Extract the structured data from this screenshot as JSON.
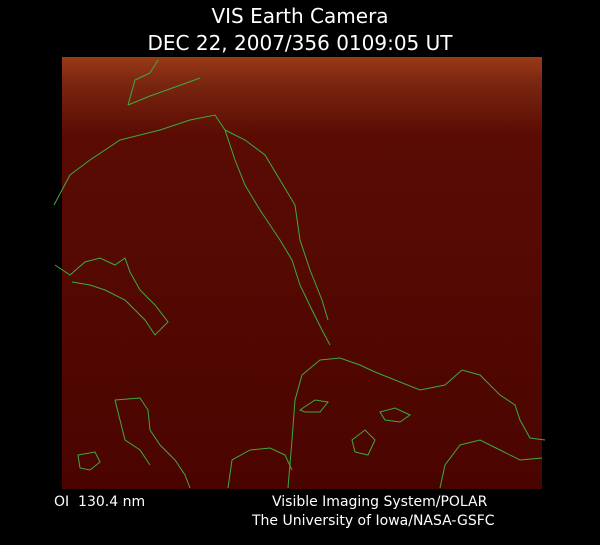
{
  "header": {
    "title": "VIS Earth Camera",
    "timestamp": "DEC 22, 2007/356 0109:05 UT"
  },
  "footer": {
    "filter": "OI  130.4 nm",
    "instrument": "Visible Imaging System/POLAR",
    "institution": "The University of Iowa/NASA-GSFC"
  }
}
